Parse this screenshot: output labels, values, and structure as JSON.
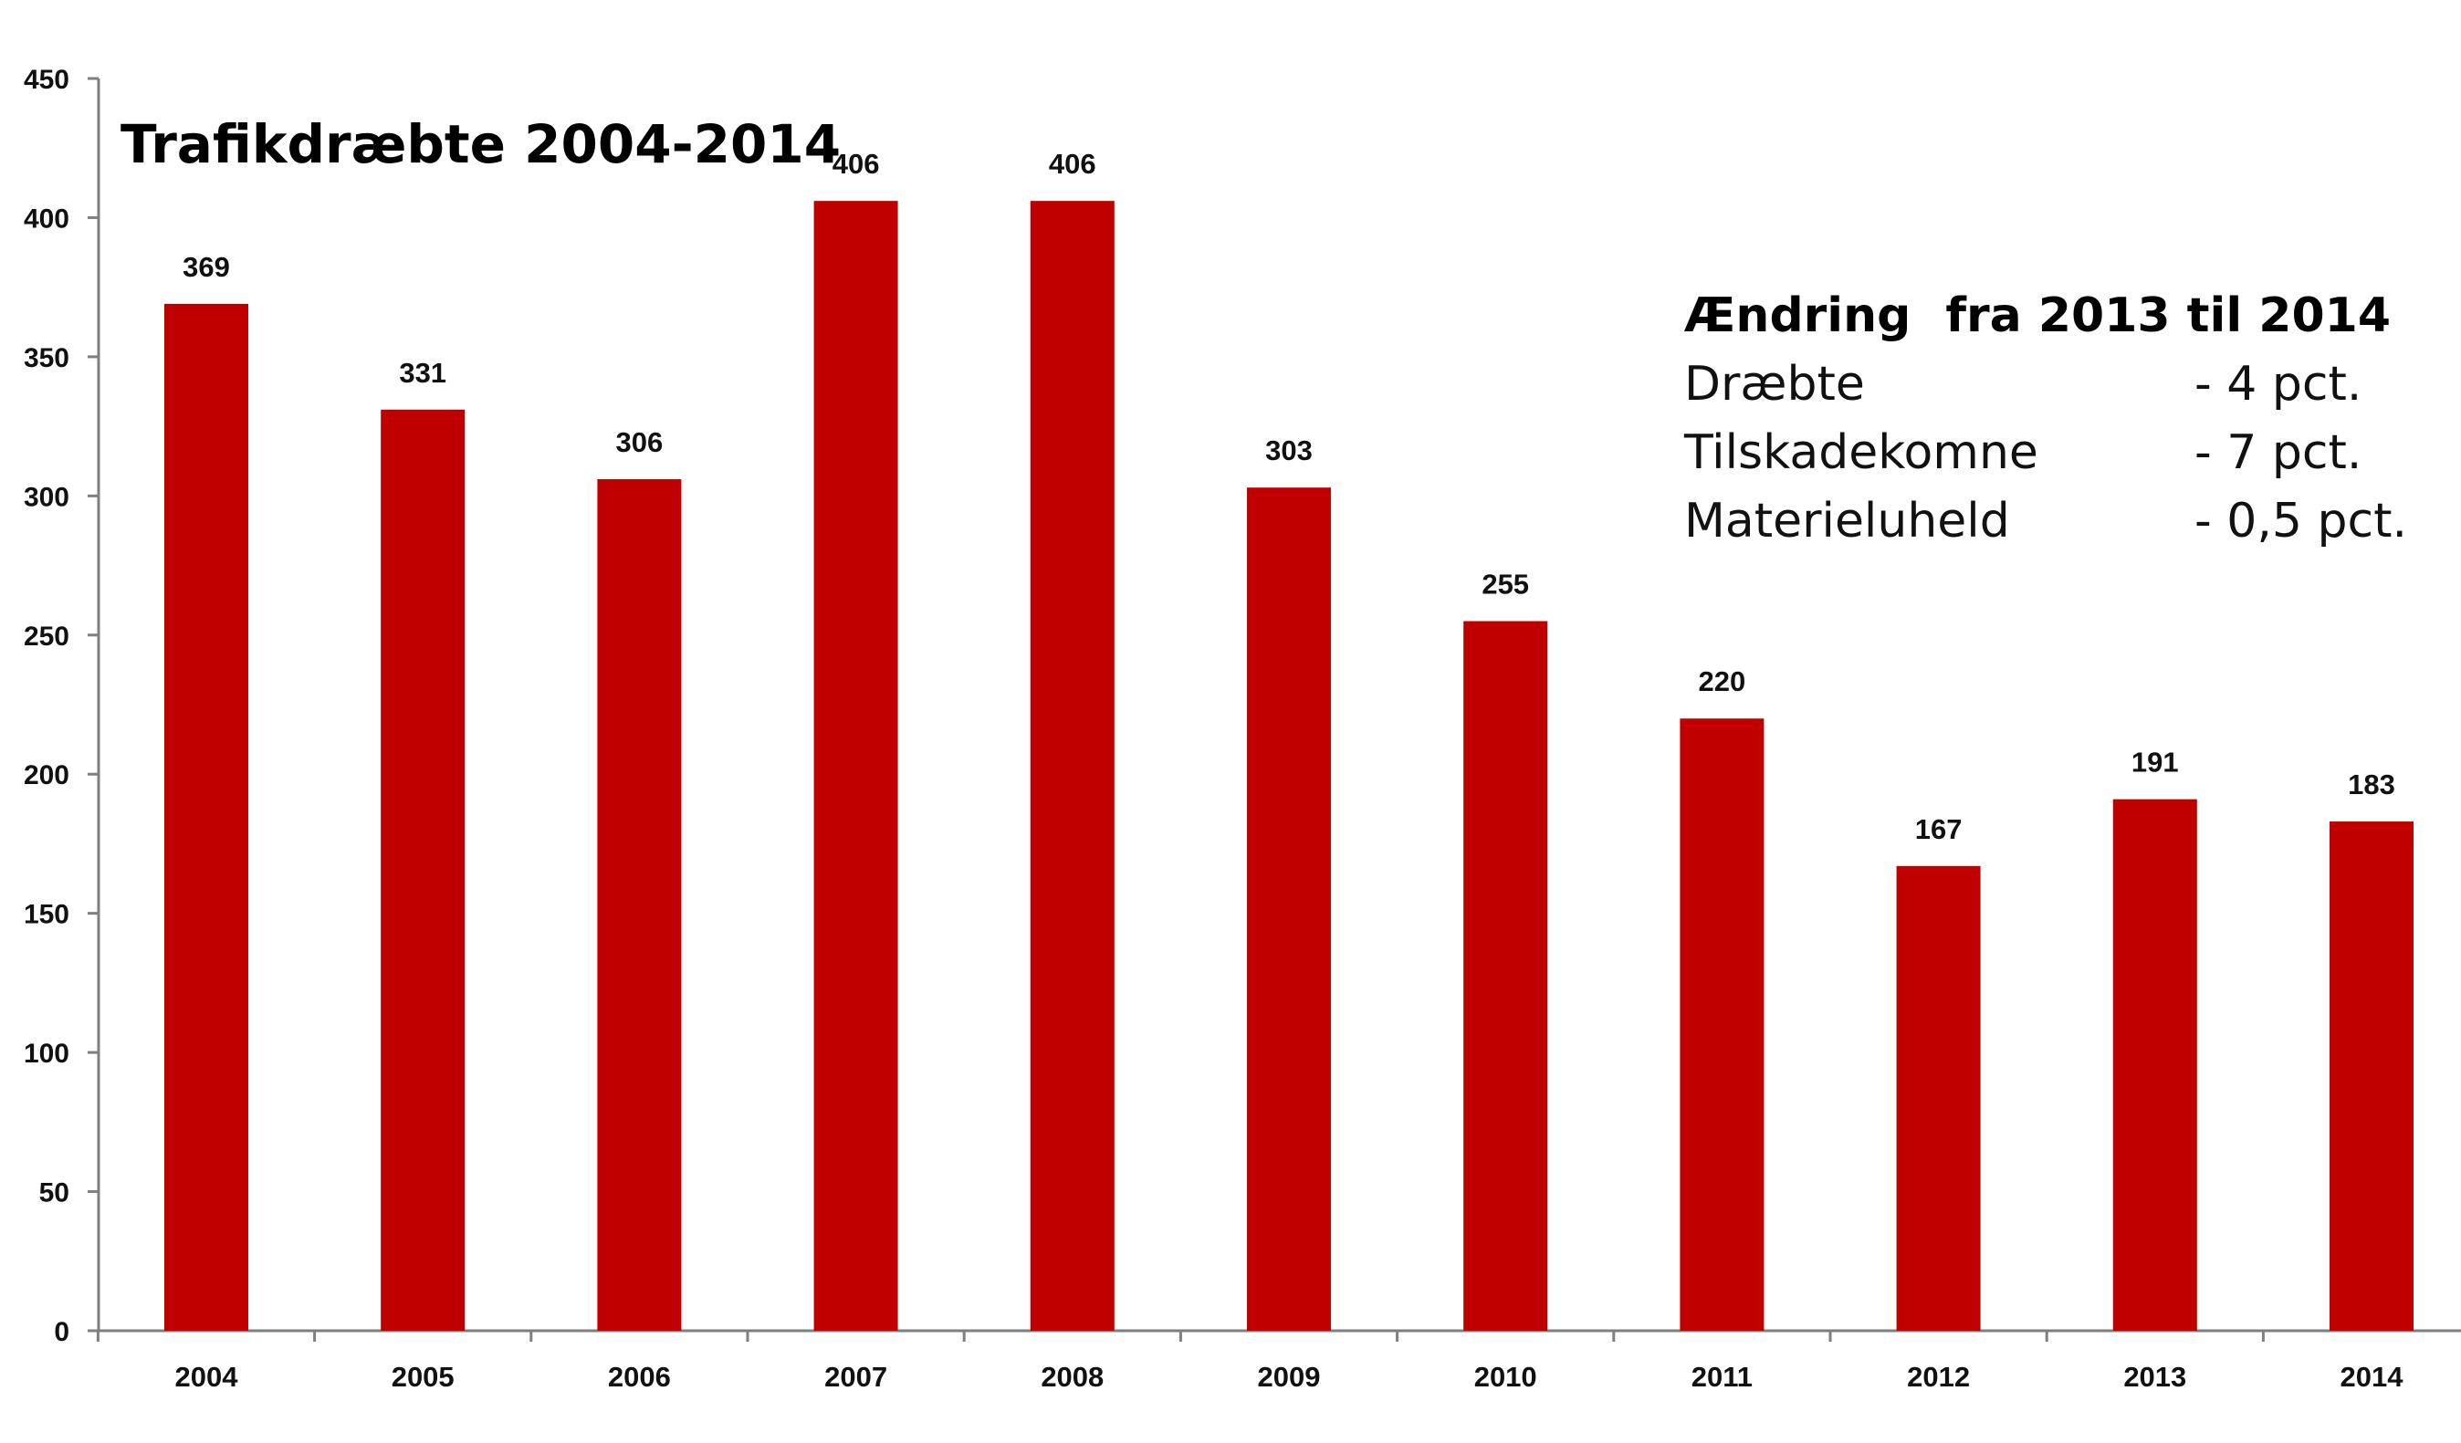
{
  "chart_data": {
    "type": "bar",
    "title": "Trafikdræbte 2004-2014",
    "categories": [
      "2004",
      "2005",
      "2006",
      "2007",
      "2008",
      "2009",
      "2010",
      "2011",
      "2012",
      "2013",
      "2014"
    ],
    "values": [
      369,
      331,
      306,
      406,
      406,
      303,
      255,
      220,
      167,
      191,
      183
    ],
    "value_labels": [
      "369",
      "331",
      "306",
      "406",
      "406",
      "303",
      "255",
      "220",
      "167",
      "191",
      "183"
    ],
    "ylim": [
      0,
      450
    ],
    "yticks": [
      0,
      50,
      100,
      150,
      200,
      250,
      300,
      350,
      400,
      450
    ],
    "ytick_labels": [
      "0",
      "50",
      "100",
      "150",
      "200",
      "250",
      "300",
      "350",
      "400",
      "450"
    ],
    "xlabel": "",
    "ylabel": "",
    "grid": false,
    "legend": "none",
    "bar_color": "#c00000"
  },
  "annotation": {
    "heading_word": "Ændring",
    "heading_rest": "fra 2013 til 2014",
    "rows": [
      {
        "label": "Dræbte",
        "value": "- 4 pct."
      },
      {
        "label": "Tilskadekomne",
        "value": "- 7 pct."
      },
      {
        "label": "Materieluheld",
        "value": "- 0,5 pct."
      }
    ]
  }
}
